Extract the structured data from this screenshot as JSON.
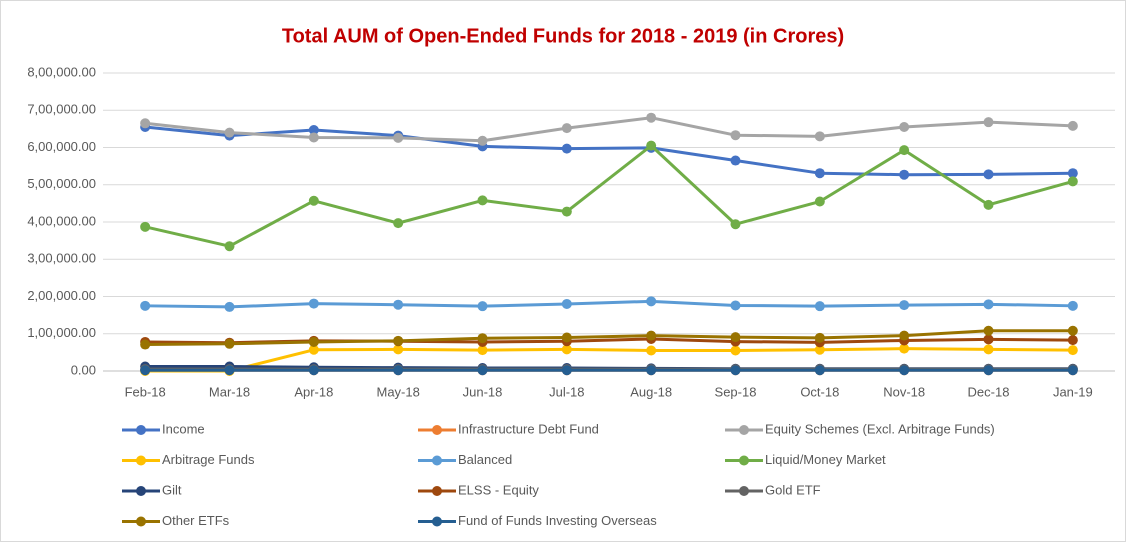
{
  "chart_data": {
    "type": "line",
    "title": "Total AUM of Open-Ended Funds for 2018 - 2019 (in Crores)",
    "categories": [
      "Feb-18",
      "Mar-18",
      "Apr-18",
      "May-18",
      "Jun-18",
      "Jul-18",
      "Aug-18",
      "Sep-18",
      "Oct-18",
      "Nov-18",
      "Dec-18",
      "Jan-19"
    ],
    "ylim": [
      0,
      800000
    ],
    "yticks": [
      {
        "value": 0,
        "label": "0.00"
      },
      {
        "value": 100000,
        "label": "1,00,000.00"
      },
      {
        "value": 200000,
        "label": "2,00,000.00"
      },
      {
        "value": 300000,
        "label": "3,00,000.00"
      },
      {
        "value": 400000,
        "label": "4,00,000.00"
      },
      {
        "value": 500000,
        "label": "5,00,000.00"
      },
      {
        "value": 600000,
        "label": "6,00,000.00"
      },
      {
        "value": 700000,
        "label": "7,00,000.00"
      },
      {
        "value": 800000,
        "label": "8,00,000.00"
      }
    ],
    "grid": true,
    "series": [
      {
        "name": "Income",
        "color": "#4472c4",
        "values": [
          655000,
          632000,
          647000,
          632000,
          603000,
          597000,
          599000,
          565000,
          531000,
          527000,
          528000,
          531000
        ]
      },
      {
        "name": "Infrastructure Debt Fund",
        "color": "#ed7d31",
        "values": [
          2000,
          2000,
          2000,
          2000,
          2000,
          2000,
          2000,
          2000,
          2000,
          2000,
          2000,
          2000
        ]
      },
      {
        "name": "Equity Schemes (Excl. Arbitrage Funds)",
        "color": "#a5a5a5",
        "values": [
          665000,
          640000,
          627000,
          626000,
          618000,
          652000,
          680000,
          633000,
          630000,
          655000,
          668000,
          658000
        ]
      },
      {
        "name": "Arbitrage Funds",
        "color": "#ffc000",
        "values": [
          0,
          0,
          57000,
          58000,
          56000,
          58000,
          55000,
          55000,
          57000,
          60000,
          58000,
          56000
        ]
      },
      {
        "name": "Balanced",
        "color": "#5b9bd5",
        "values": [
          175000,
          172000,
          181000,
          178000,
          174000,
          180000,
          187000,
          176000,
          174000,
          177000,
          179000,
          175000
        ]
      },
      {
        "name": "Liquid/Money Market",
        "color": "#70ad47",
        "values": [
          387000,
          335000,
          457000,
          397000,
          458000,
          428000,
          605000,
          394000,
          455000,
          593000,
          446000,
          509000
        ]
      },
      {
        "name": "Gilt",
        "color": "#264478",
        "values": [
          12000,
          12000,
          10000,
          9000,
          8000,
          8000,
          7000,
          6000,
          6000,
          6000,
          6000,
          6000
        ]
      },
      {
        "name": "ELSS - Equity",
        "color": "#9e480e",
        "values": [
          78000,
          76000,
          81000,
          80000,
          78000,
          80000,
          86000,
          79000,
          77000,
          82000,
          85000,
          83000
        ]
      },
      {
        "name": "Gold ETF",
        "color": "#636363",
        "values": [
          5000,
          5000,
          5000,
          5000,
          5000,
          5000,
          5000,
          5000,
          5000,
          5000,
          5000,
          5000
        ]
      },
      {
        "name": "Other ETFs",
        "color": "#997300",
        "values": [
          71000,
          73000,
          78000,
          81000,
          88000,
          90000,
          95000,
          91000,
          89000,
          95000,
          108000,
          108000
        ]
      },
      {
        "name": "Fund of Funds Investing Overseas",
        "color": "#255e91",
        "values": [
          2000,
          2000,
          2000,
          2000,
          2000,
          2000,
          2000,
          2000,
          2000,
          2000,
          2000,
          2000
        ]
      }
    ]
  }
}
